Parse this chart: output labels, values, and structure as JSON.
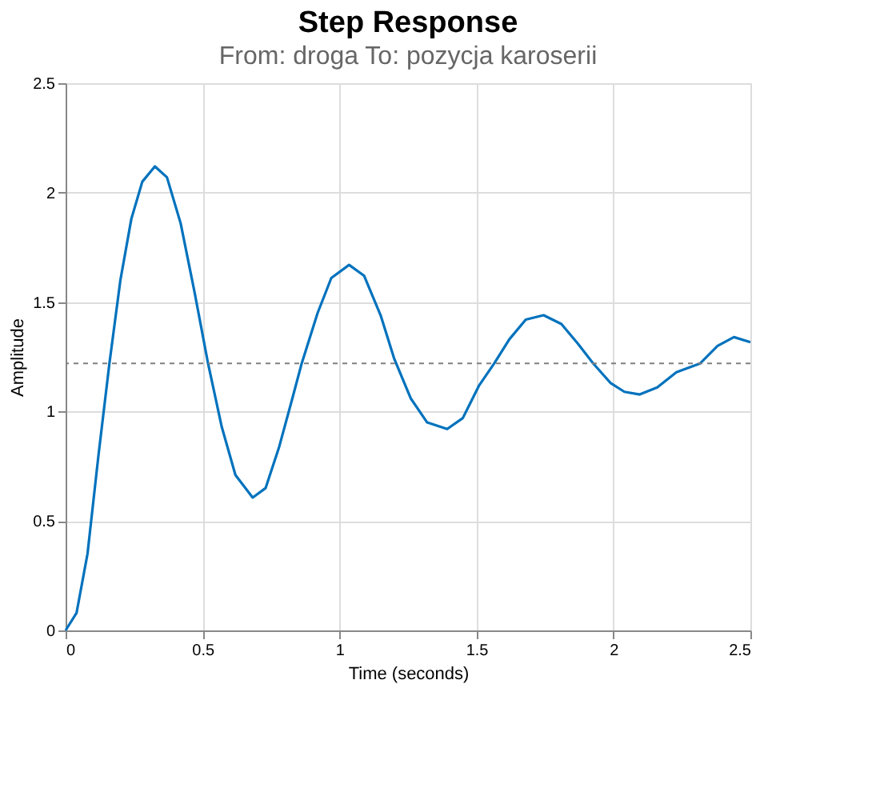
{
  "chart_data": {
    "type": "line",
    "title": "Step Response",
    "subtitle": "From: droga  To: pozycja karoserii",
    "xlabel": "Time (seconds)",
    "ylabel": "Amplitude",
    "x": [
      0,
      0.04,
      0.08,
      0.12,
      0.16,
      0.2,
      0.24,
      0.28,
      0.326,
      0.37,
      0.42,
      0.47,
      0.52,
      0.57,
      0.62,
      0.683,
      0.73,
      0.78,
      0.83,
      0.862,
      0.92,
      0.97,
      1.035,
      1.09,
      1.15,
      1.2,
      1.26,
      1.32,
      1.393,
      1.45,
      1.51,
      1.565,
      1.62,
      1.68,
      1.745,
      1.81,
      1.87,
      1.926,
      1.99,
      2.04,
      2.096,
      2.16,
      2.23,
      2.317,
      2.38,
      2.44,
      2.5
    ],
    "series": [
      {
        "color": "#0072bd",
        "values": [
          0,
          0.08,
          0.35,
          0.8,
          1.22,
          1.6,
          1.88,
          2.05,
          2.12,
          2.07,
          1.86,
          1.55,
          1.22,
          0.93,
          0.71,
          0.607,
          0.65,
          0.84,
          1.07,
          1.22,
          1.45,
          1.61,
          1.67,
          1.62,
          1.44,
          1.24,
          1.06,
          0.95,
          0.92,
          0.97,
          1.12,
          1.22,
          1.33,
          1.42,
          1.44,
          1.4,
          1.31,
          1.22,
          1.13,
          1.09,
          1.078,
          1.11,
          1.18,
          1.22,
          1.3,
          1.34,
          1.317
        ]
      }
    ],
    "xlim": [
      0,
      2.5
    ],
    "ylim": [
      0,
      2.5
    ],
    "xticks": [
      0,
      0.5,
      1,
      1.5,
      2,
      2.5
    ],
    "yticks": [
      0,
      0.5,
      1,
      1.5,
      2,
      2.5
    ],
    "ref_lines": [
      {
        "axis": "y",
        "value": 1.22,
        "label": null,
        "color": "#808080",
        "line_style": "dotted"
      }
    ],
    "grid": true,
    "marker": "none",
    "line_style": "solid"
  }
}
